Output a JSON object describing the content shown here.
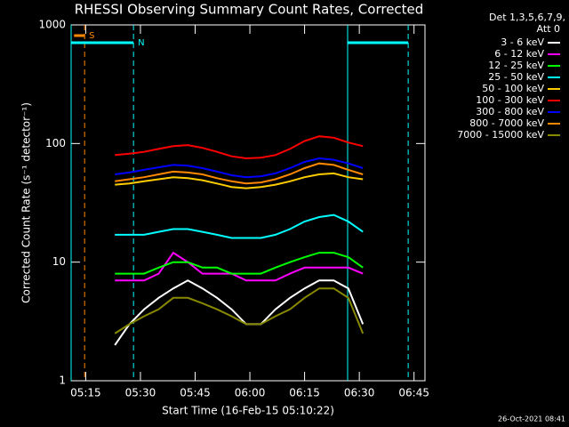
{
  "chart_data": {
    "type": "line",
    "title": "RHESSI Observing Summary Count Rates, Corrected",
    "y_label": "Corrected Count Rate (s⁻¹ detector⁻¹)",
    "x_label": "Start Time (16-Feb-15 05:10:22)",
    "legend_title": [
      "Det 1,3,5,6,7,9,",
      "Att 0"
    ],
    "timestamp": "26-Oct-2021 08:41",
    "log_y": true,
    "xlim": [
      311,
      408
    ],
    "ylim": [
      1,
      1000
    ],
    "xticks": [
      {
        "value": 315,
        "label": "05:15"
      },
      {
        "value": 330,
        "label": "05:30"
      },
      {
        "value": 345,
        "label": "05:45"
      },
      {
        "value": 360,
        "label": "06:00"
      },
      {
        "value": 375,
        "label": "06:15"
      },
      {
        "value": 390,
        "label": "06:30"
      },
      {
        "value": 405,
        "label": "06:45"
      }
    ],
    "yticks": [
      1,
      10,
      100,
      1000
    ],
    "flags": [
      {
        "label": "S",
        "color": "#ff8800",
        "x": [
          311.8,
          314.7
        ]
      },
      {
        "label": "N",
        "color": "#00ffff",
        "x": [
          311,
          328.1
        ]
      },
      {
        "color": "#00ffff",
        "x": [
          386.8,
          403.4
        ]
      }
    ],
    "x": [
      323,
      327,
      331,
      335,
      339,
      343,
      347,
      351,
      355,
      359,
      363,
      367,
      371,
      375,
      379,
      383,
      387,
      391
    ],
    "series": [
      {
        "name": "3 - 6 keV",
        "color": "#ffffff",
        "values": [
          2,
          3,
          4,
          5,
          6,
          7,
          6,
          5,
          4,
          3,
          3,
          4,
          5,
          6,
          7,
          7,
          6,
          3
        ]
      },
      {
        "name": "6 - 12 keV",
        "color": "#ff00ff",
        "values": [
          7,
          7,
          7,
          8,
          12,
          10,
          8,
          8,
          8,
          7,
          7,
          7,
          8,
          9,
          9,
          9,
          9,
          8
        ]
      },
      {
        "name": "12 - 25 keV",
        "color": "#00ff00",
        "values": [
          8,
          8,
          8,
          9,
          10,
          10,
          9,
          9,
          8,
          8,
          8,
          9,
          10,
          11,
          12,
          12,
          11,
          9
        ]
      },
      {
        "name": "25 - 50 keV",
        "color": "#00ffff",
        "values": [
          17,
          17,
          17,
          18,
          19,
          19,
          18,
          17,
          16,
          16,
          16,
          17,
          19,
          22,
          24,
          25,
          22,
          18
        ]
      },
      {
        "name": "50 - 100 keV",
        "color": "#ffcc00",
        "values": [
          45,
          46,
          48,
          50,
          52,
          51,
          49,
          46,
          43,
          42,
          43,
          45,
          48,
          52,
          55,
          56,
          52,
          50
        ]
      },
      {
        "name": "100 - 300 keV",
        "color": "#ff0000",
        "values": [
          80,
          82,
          85,
          90,
          95,
          97,
          92,
          85,
          78,
          75,
          76,
          80,
          90,
          105,
          115,
          112,
          102,
          95
        ]
      },
      {
        "name": "300 - 800 keV",
        "color": "#0000ff",
        "values": [
          55,
          57,
          60,
          63,
          66,
          65,
          62,
          58,
          54,
          52,
          53,
          56,
          62,
          70,
          75,
          73,
          68,
          62
        ]
      },
      {
        "name": "800 - 7000 keV",
        "color": "#ff8800",
        "values": [
          48,
          50,
          52,
          55,
          58,
          57,
          55,
          51,
          48,
          46,
          47,
          50,
          55,
          62,
          68,
          66,
          60,
          55
        ]
      },
      {
        "name": "7000 - 15000 keV",
        "color": "#888800",
        "values": [
          2.5,
          3,
          3.5,
          4,
          5,
          5,
          4.5,
          4,
          3.5,
          3,
          3,
          3.5,
          4,
          5,
          6,
          6,
          5,
          2.5
        ]
      }
    ]
  }
}
